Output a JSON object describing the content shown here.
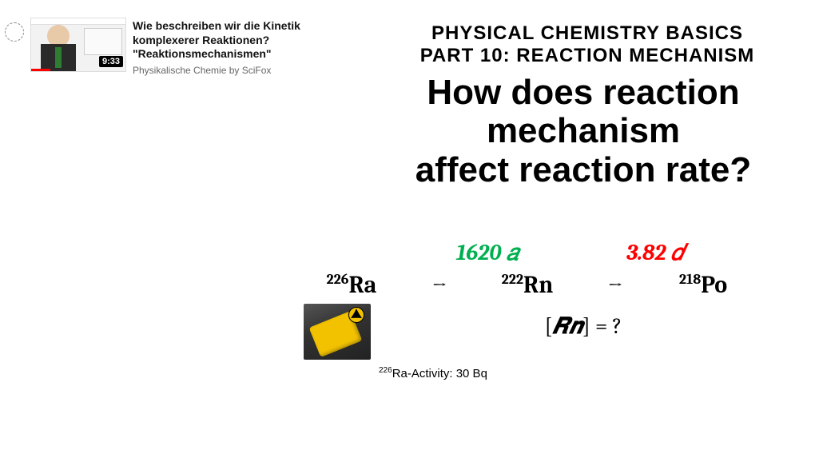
{
  "video": {
    "title": "Wie beschreiben wir die Kinetik komplexerer Reaktionen? \"Reaktionsmechanismen\"",
    "channel": "Physikalische Chemie by SciFox",
    "duration": "9:33"
  },
  "header": {
    "line1": "Physical Chemistry Basics",
    "line2": "Part 10: Reaction Mechanism"
  },
  "question": {
    "line1": "How does reaction",
    "line2": "mechanism",
    "line3": "affect reaction rate?"
  },
  "reaction": {
    "halflife1": {
      "text": "1620 𝑎",
      "color": "#00b050"
    },
    "halflife2": {
      "text": "3.82 𝑑",
      "color": "#ff0000"
    },
    "iso1": {
      "mass": "226",
      "symbol": "Ra"
    },
    "iso2": {
      "mass": "222",
      "symbol": "Rn"
    },
    "iso3": {
      "mass": "218",
      "symbol": "Po"
    },
    "arrow": "→",
    "concentration_label": "𝑹𝒏",
    "concentration_suffix": " = ?"
  },
  "activity": {
    "mass": "226",
    "symbol": "Ra",
    "text": "-Activity: 30 Bq"
  },
  "colors": {
    "green": "#00b050",
    "red": "#ff0000",
    "black": "#000000",
    "bg": "#ffffff",
    "geiger_yellow": "#f2c200"
  }
}
